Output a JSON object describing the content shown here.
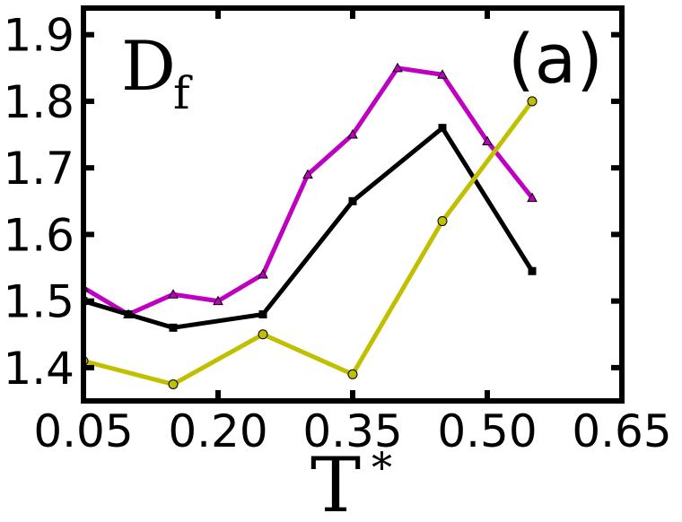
{
  "chart_data": {
    "type": "line",
    "panel_label": "(a)",
    "quantity_label": "D",
    "quantity_subscript": "f",
    "xlabel": "T",
    "xlabel_superscript": "*",
    "ylabel": "",
    "xlim": [
      0.05,
      0.65
    ],
    "ylim": [
      1.35,
      1.94
    ],
    "xticks": [
      0.05,
      0.2,
      0.35,
      0.5,
      0.65
    ],
    "xtick_labels": [
      "0.05",
      "0.20",
      "0.35",
      "0.50",
      "0.65"
    ],
    "yticks": [
      1.4,
      1.5,
      1.6,
      1.7,
      1.8,
      1.9
    ],
    "ytick_labels": [
      "1.4",
      "1.5",
      "1.6",
      "1.7",
      "1.8",
      "1.9"
    ],
    "grid": false,
    "legend": "none",
    "series": [
      {
        "color": "#c000c0",
        "marker": "triangle",
        "x": [
          0.05,
          0.1,
          0.15,
          0.2,
          0.25,
          0.3,
          0.35,
          0.4,
          0.45,
          0.5,
          0.55
        ],
        "y": [
          1.52,
          1.48,
          1.51,
          1.5,
          1.54,
          1.69,
          1.75,
          1.85,
          1.84,
          1.74,
          1.655
        ]
      },
      {
        "color": "#000000",
        "marker": "square",
        "x": [
          0.05,
          0.1,
          0.15,
          0.25,
          0.35,
          0.45,
          0.55
        ],
        "y": [
          1.5,
          1.48,
          1.46,
          1.48,
          1.65,
          1.76,
          1.545
        ]
      },
      {
        "color": "#c0c000",
        "marker": "circle",
        "x": [
          0.05,
          0.15,
          0.25,
          0.35,
          0.45,
          0.55
        ],
        "y": [
          1.41,
          1.375,
          1.45,
          1.39,
          1.62,
          1.8
        ]
      }
    ]
  }
}
